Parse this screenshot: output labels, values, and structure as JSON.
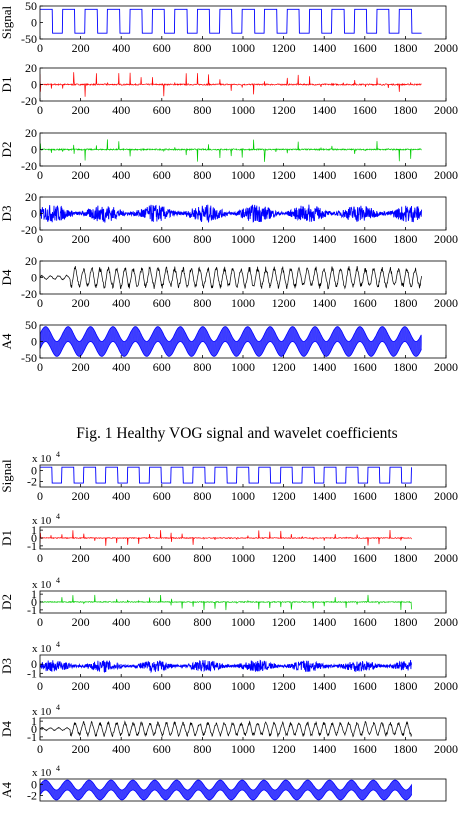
{
  "figure1": {
    "caption": "Fig. 1 Healthy VOG signal and wavelet coefficients",
    "panels": [
      {
        "label": "Signal",
        "color": "#0000ff",
        "kind": "square",
        "yticks": [
          "50",
          "0",
          "-50"
        ],
        "yvals": [
          50,
          0,
          -50
        ],
        "ylim": [
          -50,
          50
        ],
        "xticks": [
          "0",
          "200",
          "400",
          "600",
          "800",
          "1000",
          "1200",
          "1400",
          "1600",
          "1800",
          "2000"
        ],
        "xlim": [
          0,
          2000
        ],
        "data_end": 1880
      },
      {
        "label": "D1",
        "color": "#ff0000",
        "kind": "spikes",
        "yticks": [
          "20",
          "0",
          "-20"
        ],
        "yvals": [
          20,
          0,
          -20
        ],
        "ylim": [
          -20,
          20
        ],
        "xticks": [
          "0",
          "200",
          "400",
          "600",
          "800",
          "1000",
          "1200",
          "1400",
          "1600",
          "1800",
          "2000"
        ],
        "xlim": [
          0,
          2000
        ],
        "data_end": 1880
      },
      {
        "label": "D2",
        "color": "#00cc00",
        "kind": "spikes",
        "yticks": [
          "20",
          "0",
          "-20"
        ],
        "yvals": [
          20,
          0,
          -20
        ],
        "ylim": [
          -20,
          20
        ],
        "xticks": [
          "0",
          "200",
          "400",
          "600",
          "800",
          "1000",
          "1200",
          "1400",
          "1600",
          "1800",
          "2000"
        ],
        "xlim": [
          0,
          2000
        ],
        "data_end": 1880
      },
      {
        "label": "D3",
        "color": "#0000ff",
        "kind": "dense",
        "yticks": [
          "20",
          "0",
          "-20"
        ],
        "yvals": [
          20,
          0,
          -20
        ],
        "ylim": [
          -20,
          20
        ],
        "xticks": [
          "0",
          "200",
          "400",
          "600",
          "800",
          "1000",
          "1200",
          "1400",
          "1600",
          "1800",
          "2000"
        ],
        "xlim": [
          0,
          2000
        ],
        "data_end": 1880
      },
      {
        "label": "D4",
        "color": "#000000",
        "kind": "osc",
        "yticks": [
          "20",
          "0",
          "-20"
        ],
        "yvals": [
          20,
          0,
          -20
        ],
        "ylim": [
          -20,
          20
        ],
        "xticks": [
          "0",
          "200",
          "400",
          "600",
          "800",
          "1000",
          "1200",
          "1400",
          "1600",
          "1800",
          "2000"
        ],
        "xlim": [
          0,
          2000
        ],
        "data_end": 1880
      },
      {
        "label": "A4",
        "color": "#0000ff",
        "kind": "band",
        "yticks": [
          "50",
          "0",
          "-50"
        ],
        "yvals": [
          50,
          0,
          -50
        ],
        "ylim": [
          -50,
          50
        ],
        "xticks": [
          "0",
          "200",
          "400",
          "600",
          "800",
          "1000",
          "1200",
          "1400",
          "1600",
          "1800",
          "2000"
        ],
        "xlim": [
          0,
          2000
        ],
        "data_end": 1880
      }
    ]
  },
  "figure2": {
    "panels": [
      {
        "label": "Signal",
        "color": "#0000ff",
        "kind": "square",
        "exponent": "x 10",
        "exp_power": "4",
        "yticks": [
          "0",
          "-2"
        ],
        "yvals": [
          0,
          -2
        ],
        "ylim": [
          -3,
          1
        ],
        "xticks": [
          "0",
          "200",
          "400",
          "600",
          "800",
          "1000",
          "1200",
          "1400",
          "1600",
          "1800",
          "2000"
        ],
        "xlim": [
          0,
          2000
        ],
        "data_end": 1830
      },
      {
        "label": "D1",
        "color": "#ff0000",
        "kind": "spikes",
        "exponent": "x 10",
        "exp_power": "4",
        "yticks": [
          "1",
          "0",
          "-1"
        ],
        "yvals": [
          1,
          0,
          -1
        ],
        "ylim": [
          -1.4,
          1.4
        ],
        "xticks": [
          "0",
          "200",
          "400",
          "600",
          "800",
          "1000",
          "1200",
          "1400",
          "1600",
          "1800",
          "2000"
        ],
        "xlim": [
          0,
          2000
        ],
        "data_end": 1830
      },
      {
        "label": "D2",
        "color": "#00cc00",
        "kind": "spikes",
        "exponent": "x 10",
        "exp_power": "4",
        "yticks": [
          "1",
          "0",
          "-1"
        ],
        "yvals": [
          1,
          0,
          -1
        ],
        "ylim": [
          -1.4,
          1.4
        ],
        "xticks": [
          "0",
          "200",
          "400",
          "600",
          "800",
          "1000",
          "1200",
          "1400",
          "1600",
          "1800",
          "2000"
        ],
        "xlim": [
          0,
          2000
        ],
        "data_end": 1830
      },
      {
        "label": "D3",
        "color": "#0000ff",
        "kind": "dense",
        "exponent": "x 10",
        "exp_power": "4",
        "yticks": [
          "0",
          "-1"
        ],
        "yvals": [
          0,
          -1
        ],
        "ylim": [
          -1.4,
          1.0
        ],
        "xticks": [
          "0",
          "200",
          "400",
          "600",
          "800",
          "1000",
          "1200",
          "1400",
          "1600",
          "1800",
          "2000"
        ],
        "xlim": [
          0,
          2000
        ],
        "data_end": 1830
      },
      {
        "label": "D4",
        "color": "#000000",
        "kind": "osc",
        "exponent": "x 10",
        "exp_power": "4",
        "yticks": [
          "1",
          "0",
          "-1"
        ],
        "yvals": [
          1,
          0,
          -1
        ],
        "ylim": [
          -1.4,
          1.4
        ],
        "xticks": [
          "0",
          "200",
          "400",
          "600",
          "800",
          "1000",
          "1200",
          "1400",
          "1600",
          "1800",
          "2000"
        ],
        "xlim": [
          0,
          2000
        ],
        "data_end": 1830
      },
      {
        "label": "A4",
        "color": "#0000ff",
        "kind": "band",
        "exponent": "x 10",
        "exp_power": "4",
        "yticks": [
          "0",
          "-2"
        ],
        "yvals": [
          0,
          -2
        ],
        "ylim": [
          -3,
          1
        ],
        "xticks": [],
        "xlim": [
          0,
          2000
        ],
        "data_end": 1830
      }
    ]
  },
  "chart_data": [
    {
      "type": "line",
      "title": "",
      "series": [
        {
          "name": "Signal",
          "ylim": [
            -50,
            50
          ],
          "shape": "square wave, ~17 cycles, amplitude ±40"
        },
        {
          "name": "D1",
          "ylim": [
            -20,
            20
          ]
        },
        {
          "name": "D2",
          "ylim": [
            -20,
            20
          ]
        },
        {
          "name": "D3",
          "ylim": [
            -20,
            20
          ]
        },
        {
          "name": "D4",
          "ylim": [
            -20,
            20
          ]
        },
        {
          "name": "A4",
          "ylim": [
            -50,
            50
          ]
        }
      ],
      "xlim": [
        0,
        2000
      ]
    },
    {
      "type": "line",
      "title": "",
      "series": [
        {
          "name": "Signal"
        },
        {
          "name": "D1"
        },
        {
          "name": "D2"
        },
        {
          "name": "D3"
        },
        {
          "name": "D4"
        },
        {
          "name": "A4"
        }
      ],
      "xlim": [
        0,
        2000
      ],
      "y_multiplier": "x 10^4"
    }
  ]
}
